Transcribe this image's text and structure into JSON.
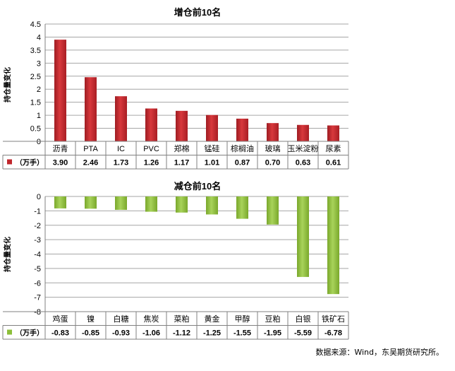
{
  "chart_data": [
    {
      "type": "bar",
      "title": "增仓前10名",
      "ylabel": "持仓量变化",
      "unit_label": "（万手）",
      "categories": [
        "沥青",
        "PTA",
        "IC",
        "PVC",
        "郑棉",
        "锰硅",
        "棕榈油",
        "玻璃",
        "玉米淀粉",
        "尿素"
      ],
      "values": [
        3.9,
        2.46,
        1.73,
        1.26,
        1.17,
        1.01,
        0.87,
        0.7,
        0.63,
        0.61
      ],
      "value_labels": [
        "3.90",
        "2.46",
        "1.73",
        "1.26",
        "1.17",
        "1.01",
        "0.87",
        "0.70",
        "0.63",
        "0.61"
      ],
      "ylim": [
        0,
        4.5
      ],
      "ytick_step": 0.5,
      "yticks": [
        "0",
        "0.5",
        "1",
        "1.5",
        "2",
        "2.5",
        "3",
        "3.5",
        "4",
        "4.5"
      ],
      "grid": true,
      "legend": "data-table",
      "color": "#c0262c"
    },
    {
      "type": "bar",
      "title": "减仓前10名",
      "ylabel": "持仓量变化",
      "unit_label": "（万手）",
      "categories": [
        "鸡蛋",
        "镍",
        "白糖",
        "焦炭",
        "菜粕",
        "黄金",
        "甲醇",
        "豆粕",
        "白银",
        "铁矿石"
      ],
      "values": [
        -0.83,
        -0.85,
        -0.93,
        -1.06,
        -1.12,
        -1.25,
        -1.55,
        -1.95,
        -5.59,
        -6.78
      ],
      "value_labels": [
        "-0.83",
        "-0.85",
        "-0.93",
        "-1.06",
        "-1.12",
        "-1.25",
        "-1.55",
        "-1.95",
        "-5.59",
        "-6.78"
      ],
      "ylim": [
        -8,
        0
      ],
      "ytick_step": 1,
      "yticks": [
        "-8",
        "-7",
        "-6",
        "-5",
        "-4",
        "-3",
        "-2",
        "-1",
        "0"
      ],
      "grid": true,
      "legend": "data-table",
      "color": "#8cbf3a"
    }
  ],
  "source": "数据来源：Wind，东吴期货研究所。"
}
